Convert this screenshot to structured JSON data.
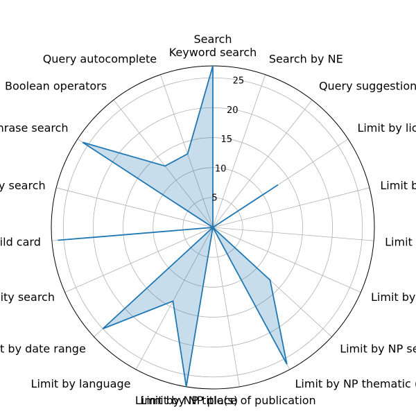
{
  "chart_data": {
    "type": "radar",
    "title": "Search",
    "categories": [
      "Keyword search",
      "Search by NE",
      "Query suggestion",
      "Limit by license",
      "Limit by archival l",
      "Limit by article l",
      "Limit by article cate",
      "Limit by NP segments",
      "Limit by NP thematic (from metadata)",
      "Limit by NP place of publication",
      "Limit by NP title(s)",
      "Limit by language",
      "Limit by date range",
      "Proximity search",
      "Wild card",
      "Fuzzy search",
      "Phrase search",
      "Boolean operators",
      "Query autocomplete"
    ],
    "values": [
      27,
      0,
      0,
      13,
      0,
      0,
      0,
      13,
      26,
      0,
      27,
      14,
      25,
      0,
      26,
      0,
      26,
      13,
      13
    ],
    "rlim": [
      0,
      27
    ],
    "rticks": [
      5,
      10,
      15,
      20,
      25
    ],
    "rtick_labels": [
      "5",
      "10",
      "15",
      "20",
      "25"
    ],
    "grid": true,
    "colors": {
      "line": "#1f77b4",
      "fill": "#1f77b4",
      "grid": "#b0b0b0"
    }
  }
}
